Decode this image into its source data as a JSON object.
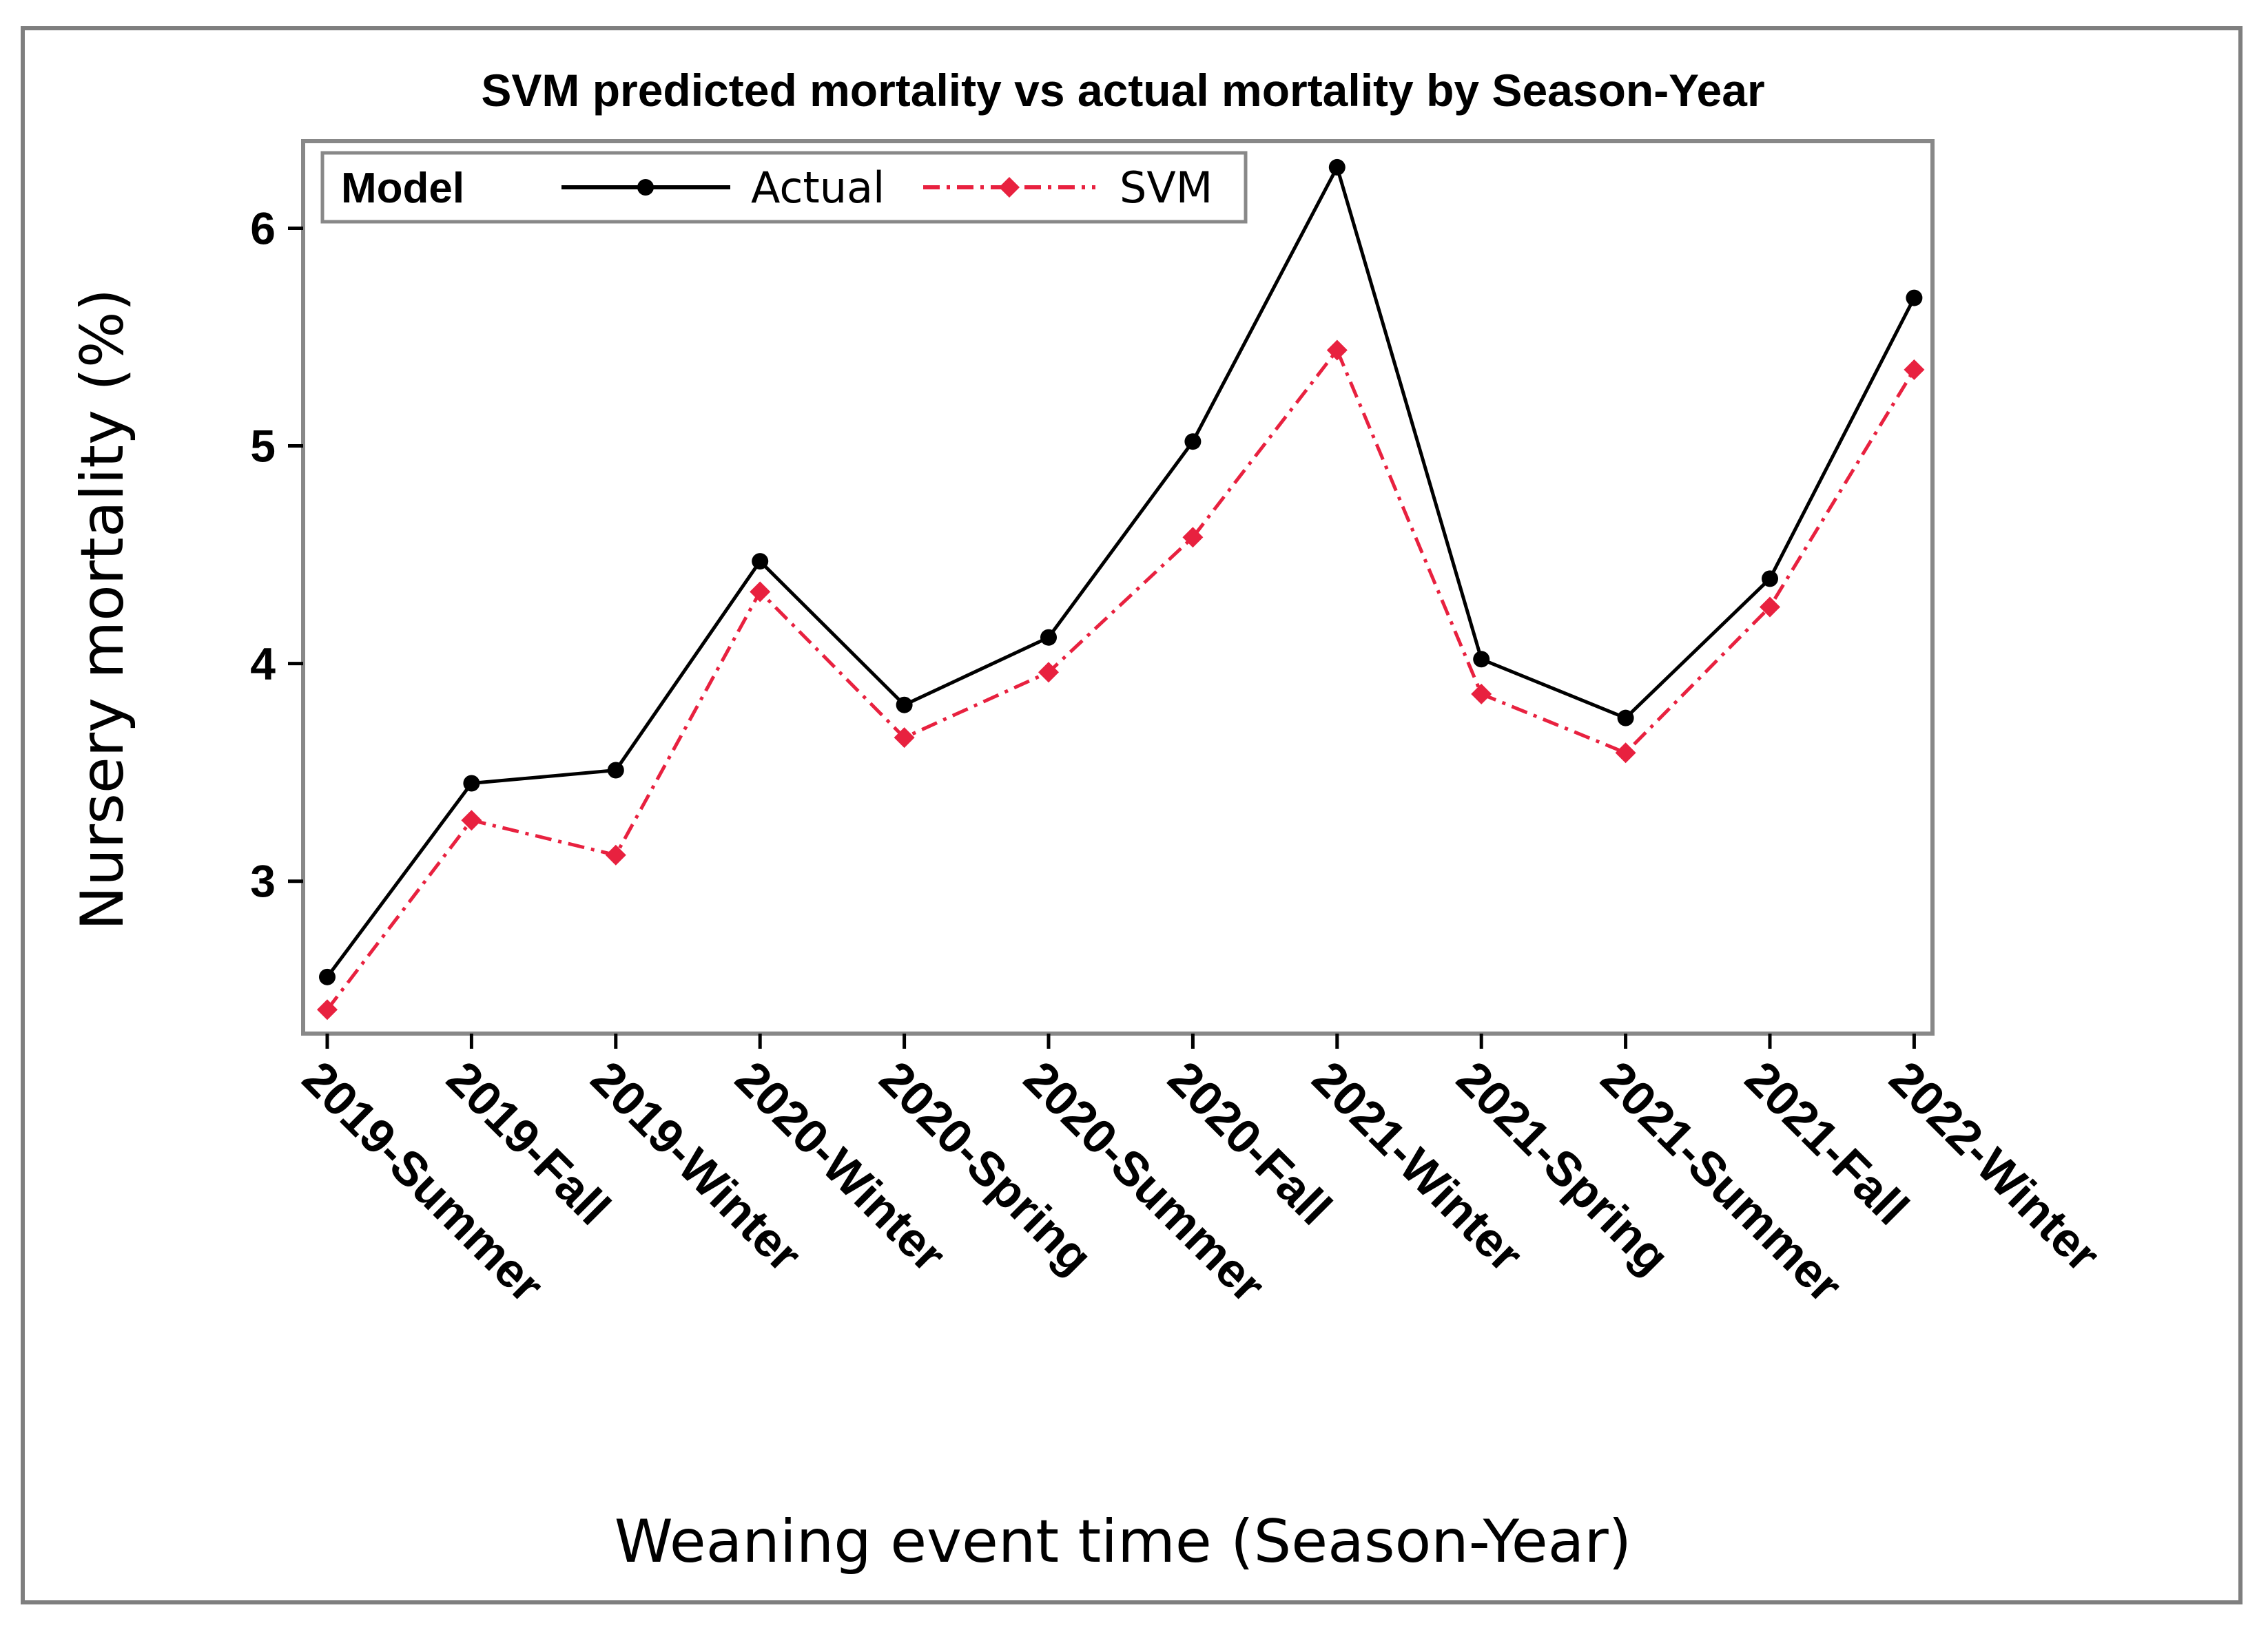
{
  "chart_data": {
    "type": "line",
    "title": "SVM predicted mortality vs actual mortality by Season-Year",
    "xlabel": "Weaning event time (Season-Year)",
    "ylabel": "Nursery mortality (%)",
    "ylim": [
      2.3,
      6.4
    ],
    "yticks": [
      3,
      4,
      5,
      6
    ],
    "grid": false,
    "categories": [
      "2019-Summer",
      "2019-Fall",
      "2019-Winter",
      "2020-Winter",
      "2020-Spring",
      "2020-Summer",
      "2020-Fall",
      "2021-Winter",
      "2021-Spring",
      "2021-Summer",
      "2021-Fall",
      "2022-Winter"
    ],
    "legend": {
      "title": "Model",
      "position": "top-left"
    },
    "series": [
      {
        "name": "Actual",
        "color": "#000000",
        "marker": "circle",
        "line_style": "solid",
        "values": [
          2.56,
          3.45,
          3.51,
          4.47,
          3.81,
          4.12,
          5.02,
          6.28,
          4.02,
          3.75,
          4.39,
          5.68
        ]
      },
      {
        "name": "SVM",
        "color": "#e8213f",
        "marker": "diamond",
        "line_style": "dash-dot",
        "values": [
          2.41,
          3.28,
          3.12,
          4.33,
          3.66,
          3.96,
          4.58,
          5.44,
          3.86,
          3.59,
          4.26,
          5.35
        ]
      }
    ]
  }
}
